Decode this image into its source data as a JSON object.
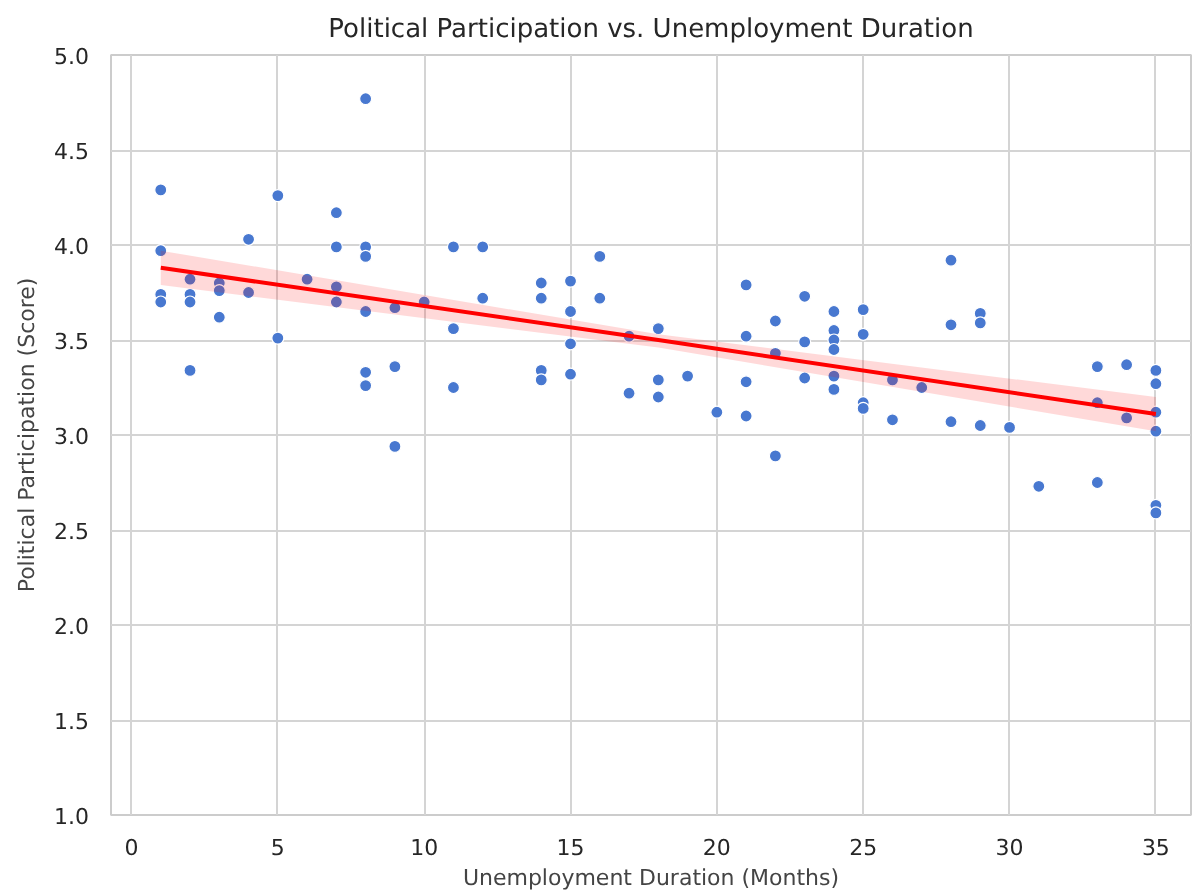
{
  "chart_data": {
    "type": "scatter",
    "title": "Political Participation vs. Unemployment Duration",
    "xlabel": "Unemployment Duration (Months)",
    "ylabel": "Political Participation (Score)",
    "xlim": [
      -0.7,
      36.2
    ],
    "ylim": [
      1.0,
      5.0
    ],
    "xticks": [
      0,
      5,
      10,
      15,
      20,
      25,
      30,
      35
    ],
    "yticks": [
      {
        "value": 1.0,
        "label": "1.0"
      },
      {
        "value": 1.5,
        "label": "1.5"
      },
      {
        "value": 2.0,
        "label": "2.0"
      },
      {
        "value": 2.5,
        "label": "2.5"
      },
      {
        "value": 3.0,
        "label": "3.0"
      },
      {
        "value": 3.5,
        "label": "3.5"
      },
      {
        "value": 4.0,
        "label": "4.0"
      },
      {
        "value": 4.5,
        "label": "4.5"
      },
      {
        "value": 5.0,
        "label": "5.0"
      }
    ],
    "grid": true,
    "marker": "circle",
    "series": [
      {
        "color": "#4878d0",
        "x": [
          1,
          1,
          1,
          1,
          2,
          2,
          2,
          2,
          3,
          3,
          3,
          4,
          4,
          5,
          5,
          6,
          7,
          7,
          7,
          7,
          8,
          8,
          8,
          8,
          8,
          8,
          9,
          9,
          9,
          10,
          11,
          11,
          11,
          12,
          12,
          14,
          14,
          14,
          14,
          15,
          15,
          15,
          15,
          16,
          16,
          17,
          17,
          18,
          18,
          18,
          19,
          20,
          21,
          21,
          21,
          21,
          22,
          22,
          22,
          23,
          23,
          23,
          24,
          24,
          24,
          24,
          24,
          24,
          25,
          25,
          25,
          25,
          26,
          26,
          27,
          28,
          28,
          28,
          29,
          29,
          29,
          30,
          31,
          33,
          33,
          33,
          34,
          34,
          35,
          35,
          35,
          35,
          35,
          35
        ],
        "values": [
          4.29,
          3.97,
          3.74,
          3.7,
          3.82,
          3.74,
          3.7,
          3.34,
          3.8,
          3.76,
          3.62,
          4.03,
          3.75,
          4.26,
          3.51,
          3.82,
          4.17,
          3.99,
          3.78,
          3.7,
          4.77,
          3.99,
          3.94,
          3.65,
          3.33,
          3.26,
          3.67,
          3.36,
          2.94,
          3.7,
          3.99,
          3.56,
          3.25,
          3.99,
          3.72,
          3.8,
          3.72,
          3.34,
          3.29,
          3.81,
          3.65,
          3.48,
          3.32,
          3.94,
          3.72,
          3.52,
          3.22,
          3.56,
          3.29,
          3.2,
          3.31,
          3.12,
          3.79,
          3.52,
          3.28,
          3.1,
          3.6,
          3.43,
          2.89,
          3.73,
          3.49,
          3.3,
          3.65,
          3.55,
          3.5,
          3.45,
          3.31,
          3.24,
          3.66,
          3.53,
          3.17,
          3.14,
          3.29,
          3.08,
          3.25,
          3.92,
          3.58,
          3.07,
          3.64,
          3.59,
          3.05,
          3.04,
          2.73,
          3.36,
          3.17,
          2.75,
          3.37,
          3.09,
          3.34,
          3.27,
          3.12,
          3.02,
          2.63,
          2.59
        ]
      },
      {
        "type": "line",
        "color": "#ff0000",
        "marker": "none",
        "line_style": "solid",
        "x": [
          1,
          18,
          35
        ],
        "values": [
          3.88,
          3.5,
          3.11
        ],
        "lower": [
          3.79,
          3.46,
          3.02
        ],
        "upper": [
          3.97,
          3.53,
          3.2
        ]
      }
    ]
  }
}
